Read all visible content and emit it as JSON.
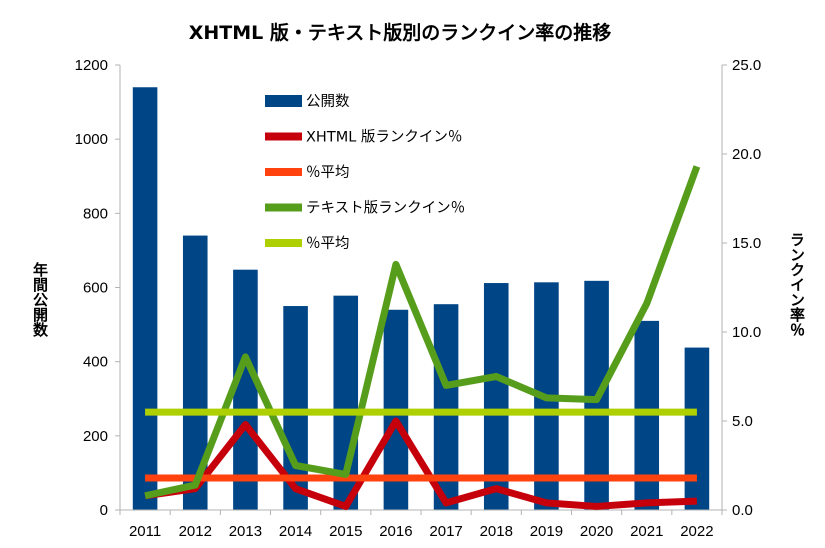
{
  "chart_data": {
    "type": "bar",
    "title": "XHTML 版・テキスト版別のランクイン率の推移",
    "categories": [
      "2011",
      "2012",
      "2013",
      "2014",
      "2015",
      "2016",
      "2017",
      "2018",
      "2019",
      "2020",
      "2021",
      "2022"
    ],
    "ylabel_left": "年間公開数",
    "ylabel_right": "ランクイン率％",
    "ylim_left": [
      0,
      1200
    ],
    "ylim_right": [
      0,
      25
    ],
    "yticks_left": [
      "0",
      "200",
      "400",
      "600",
      "800",
      "1000",
      "1200"
    ],
    "yticks_right": [
      "0.0",
      "5.0",
      "10.0",
      "15.0",
      "20.0",
      "25.0"
    ],
    "grid": false,
    "legend_position": "top-center",
    "series": [
      {
        "name": "公開数",
        "type": "bar",
        "axis": "left",
        "color": "#004586",
        "values": [
          1140,
          740,
          648,
          550,
          578,
          540,
          555,
          612,
          614,
          618,
          510,
          438
        ]
      },
      {
        "name": "XHTML 版ランクイン％",
        "type": "line",
        "axis": "right",
        "color": "#c5000b",
        "values": [
          0.8,
          1.2,
          4.8,
          1.2,
          0.2,
          5.0,
          0.4,
          1.2,
          0.4,
          0.2,
          0.4,
          0.5
        ]
      },
      {
        "name": "％平均",
        "type": "line",
        "axis": "right",
        "color": "#ff420e",
        "values": [
          1.8,
          1.8,
          1.8,
          1.8,
          1.8,
          1.8,
          1.8,
          1.8,
          1.8,
          1.8,
          1.8,
          1.8
        ]
      },
      {
        "name": "テキスト版ランクイン％",
        "type": "line",
        "axis": "right",
        "color": "#579d1c",
        "values": [
          0.8,
          1.4,
          8.6,
          2.5,
          2.0,
          13.8,
          7.0,
          7.5,
          6.3,
          6.2,
          11.6,
          19.3
        ]
      },
      {
        "name": "％平均",
        "type": "line",
        "axis": "right",
        "color": "#aecf00",
        "values": [
          5.5,
          5.5,
          5.5,
          5.5,
          5.5,
          5.5,
          5.5,
          5.5,
          5.5,
          5.5,
          5.5,
          5.5
        ]
      }
    ]
  }
}
